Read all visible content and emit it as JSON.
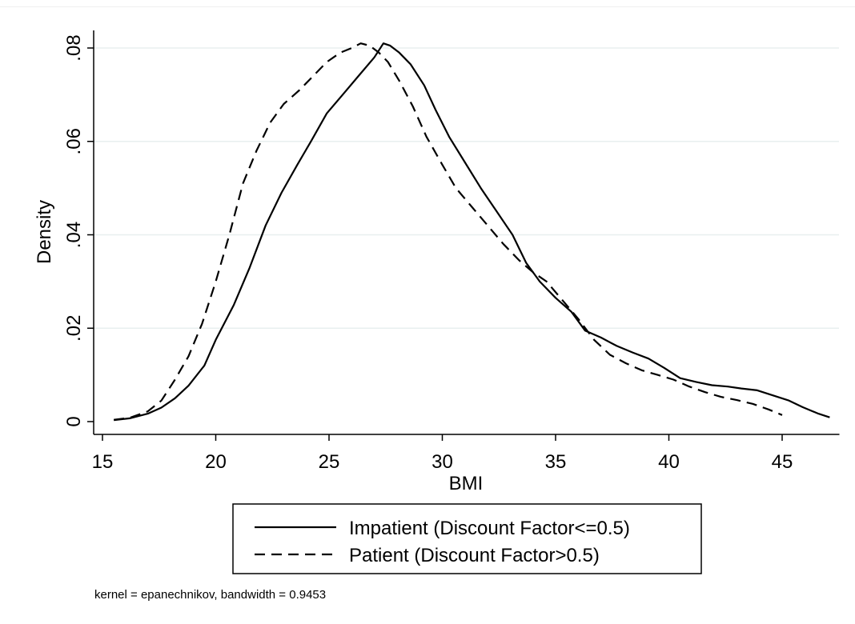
{
  "chart_data": {
    "type": "line",
    "title": "",
    "xlabel": "BMI",
    "ylabel": "Density",
    "xlim": [
      15,
      47.2
    ],
    "ylim": [
      0,
      0.08
    ],
    "xticks": [
      15,
      20,
      25,
      30,
      35,
      40,
      45
    ],
    "xtick_labels": [
      "15",
      "20",
      "25",
      "30",
      "35",
      "40",
      "45"
    ],
    "yticks": [
      0,
      0.02,
      0.04,
      0.06,
      0.08
    ],
    "ytick_labels": [
      "0",
      ".02",
      ".04",
      ".06",
      ".08"
    ],
    "grid": true,
    "legend_position": "bottom",
    "note": "kernel = epanechnikov, bandwidth = 0.9453",
    "series": [
      {
        "name": "Impatient (Discount Factor<=0.5)",
        "style": "solid",
        "color": "#000000",
        "x": [
          15.5,
          16.2,
          17.0,
          17.6,
          18.2,
          18.8,
          19.5,
          20.0,
          20.8,
          21.5,
          22.2,
          22.9,
          23.6,
          24.2,
          24.9,
          25.6,
          26.3,
          27.0,
          27.4,
          27.7,
          28.1,
          28.6,
          29.2,
          29.7,
          30.3,
          31.0,
          31.7,
          32.4,
          33.1,
          33.7,
          34.3,
          35.0,
          35.7,
          36.3,
          37.0,
          37.7,
          38.4,
          39.1,
          39.8,
          40.5,
          41.2,
          41.9,
          42.6,
          43.2,
          43.9,
          44.6,
          45.3,
          45.9,
          46.6,
          47.1
        ],
        "y": [
          0.0003,
          0.0007,
          0.0017,
          0.003,
          0.005,
          0.0077,
          0.012,
          0.0175,
          0.025,
          0.033,
          0.042,
          0.049,
          0.055,
          0.06,
          0.066,
          0.07,
          0.074,
          0.078,
          0.081,
          0.0805,
          0.079,
          0.0765,
          0.072,
          0.0668,
          0.061,
          0.0555,
          0.05,
          0.045,
          0.04,
          0.034,
          0.03,
          0.0265,
          0.0235,
          0.0195,
          0.018,
          0.0162,
          0.0148,
          0.0135,
          0.0115,
          0.0093,
          0.0085,
          0.0078,
          0.0075,
          0.0071,
          0.0067,
          0.0056,
          0.0045,
          0.0031,
          0.0017,
          0.0009
        ]
      },
      {
        "name": "Patient (Discount Factor>0.5)",
        "style": "dashed",
        "color": "#000000",
        "x": [
          15.5,
          16.2,
          17.0,
          17.6,
          18.2,
          18.8,
          19.4,
          20.0,
          20.6,
          21.2,
          21.8,
          22.4,
          23.0,
          23.7,
          24.3,
          24.9,
          25.5,
          26.0,
          26.4,
          26.8,
          27.2,
          27.6,
          28.1,
          28.7,
          29.3,
          30.0,
          30.6,
          31.3,
          32.0,
          32.7,
          33.4,
          34.0,
          34.6,
          35.3,
          36.0,
          36.7,
          37.4,
          38.1,
          38.8,
          39.5,
          40.2,
          40.9,
          41.6,
          42.3,
          43.0,
          43.7,
          44.4,
          45.0
        ],
        "y": [
          0.0004,
          0.0008,
          0.0022,
          0.0045,
          0.009,
          0.014,
          0.021,
          0.03,
          0.04,
          0.051,
          0.058,
          0.064,
          0.068,
          0.071,
          0.074,
          0.077,
          0.079,
          0.08,
          0.081,
          0.0805,
          0.079,
          0.077,
          0.073,
          0.0675,
          0.061,
          0.055,
          0.05,
          0.046,
          0.042,
          0.038,
          0.0345,
          0.032,
          0.03,
          0.026,
          0.022,
          0.0175,
          0.0143,
          0.0125,
          0.011,
          0.01,
          0.009,
          0.0075,
          0.0063,
          0.0053,
          0.0046,
          0.0038,
          0.0026,
          0.0014
        ]
      }
    ]
  }
}
